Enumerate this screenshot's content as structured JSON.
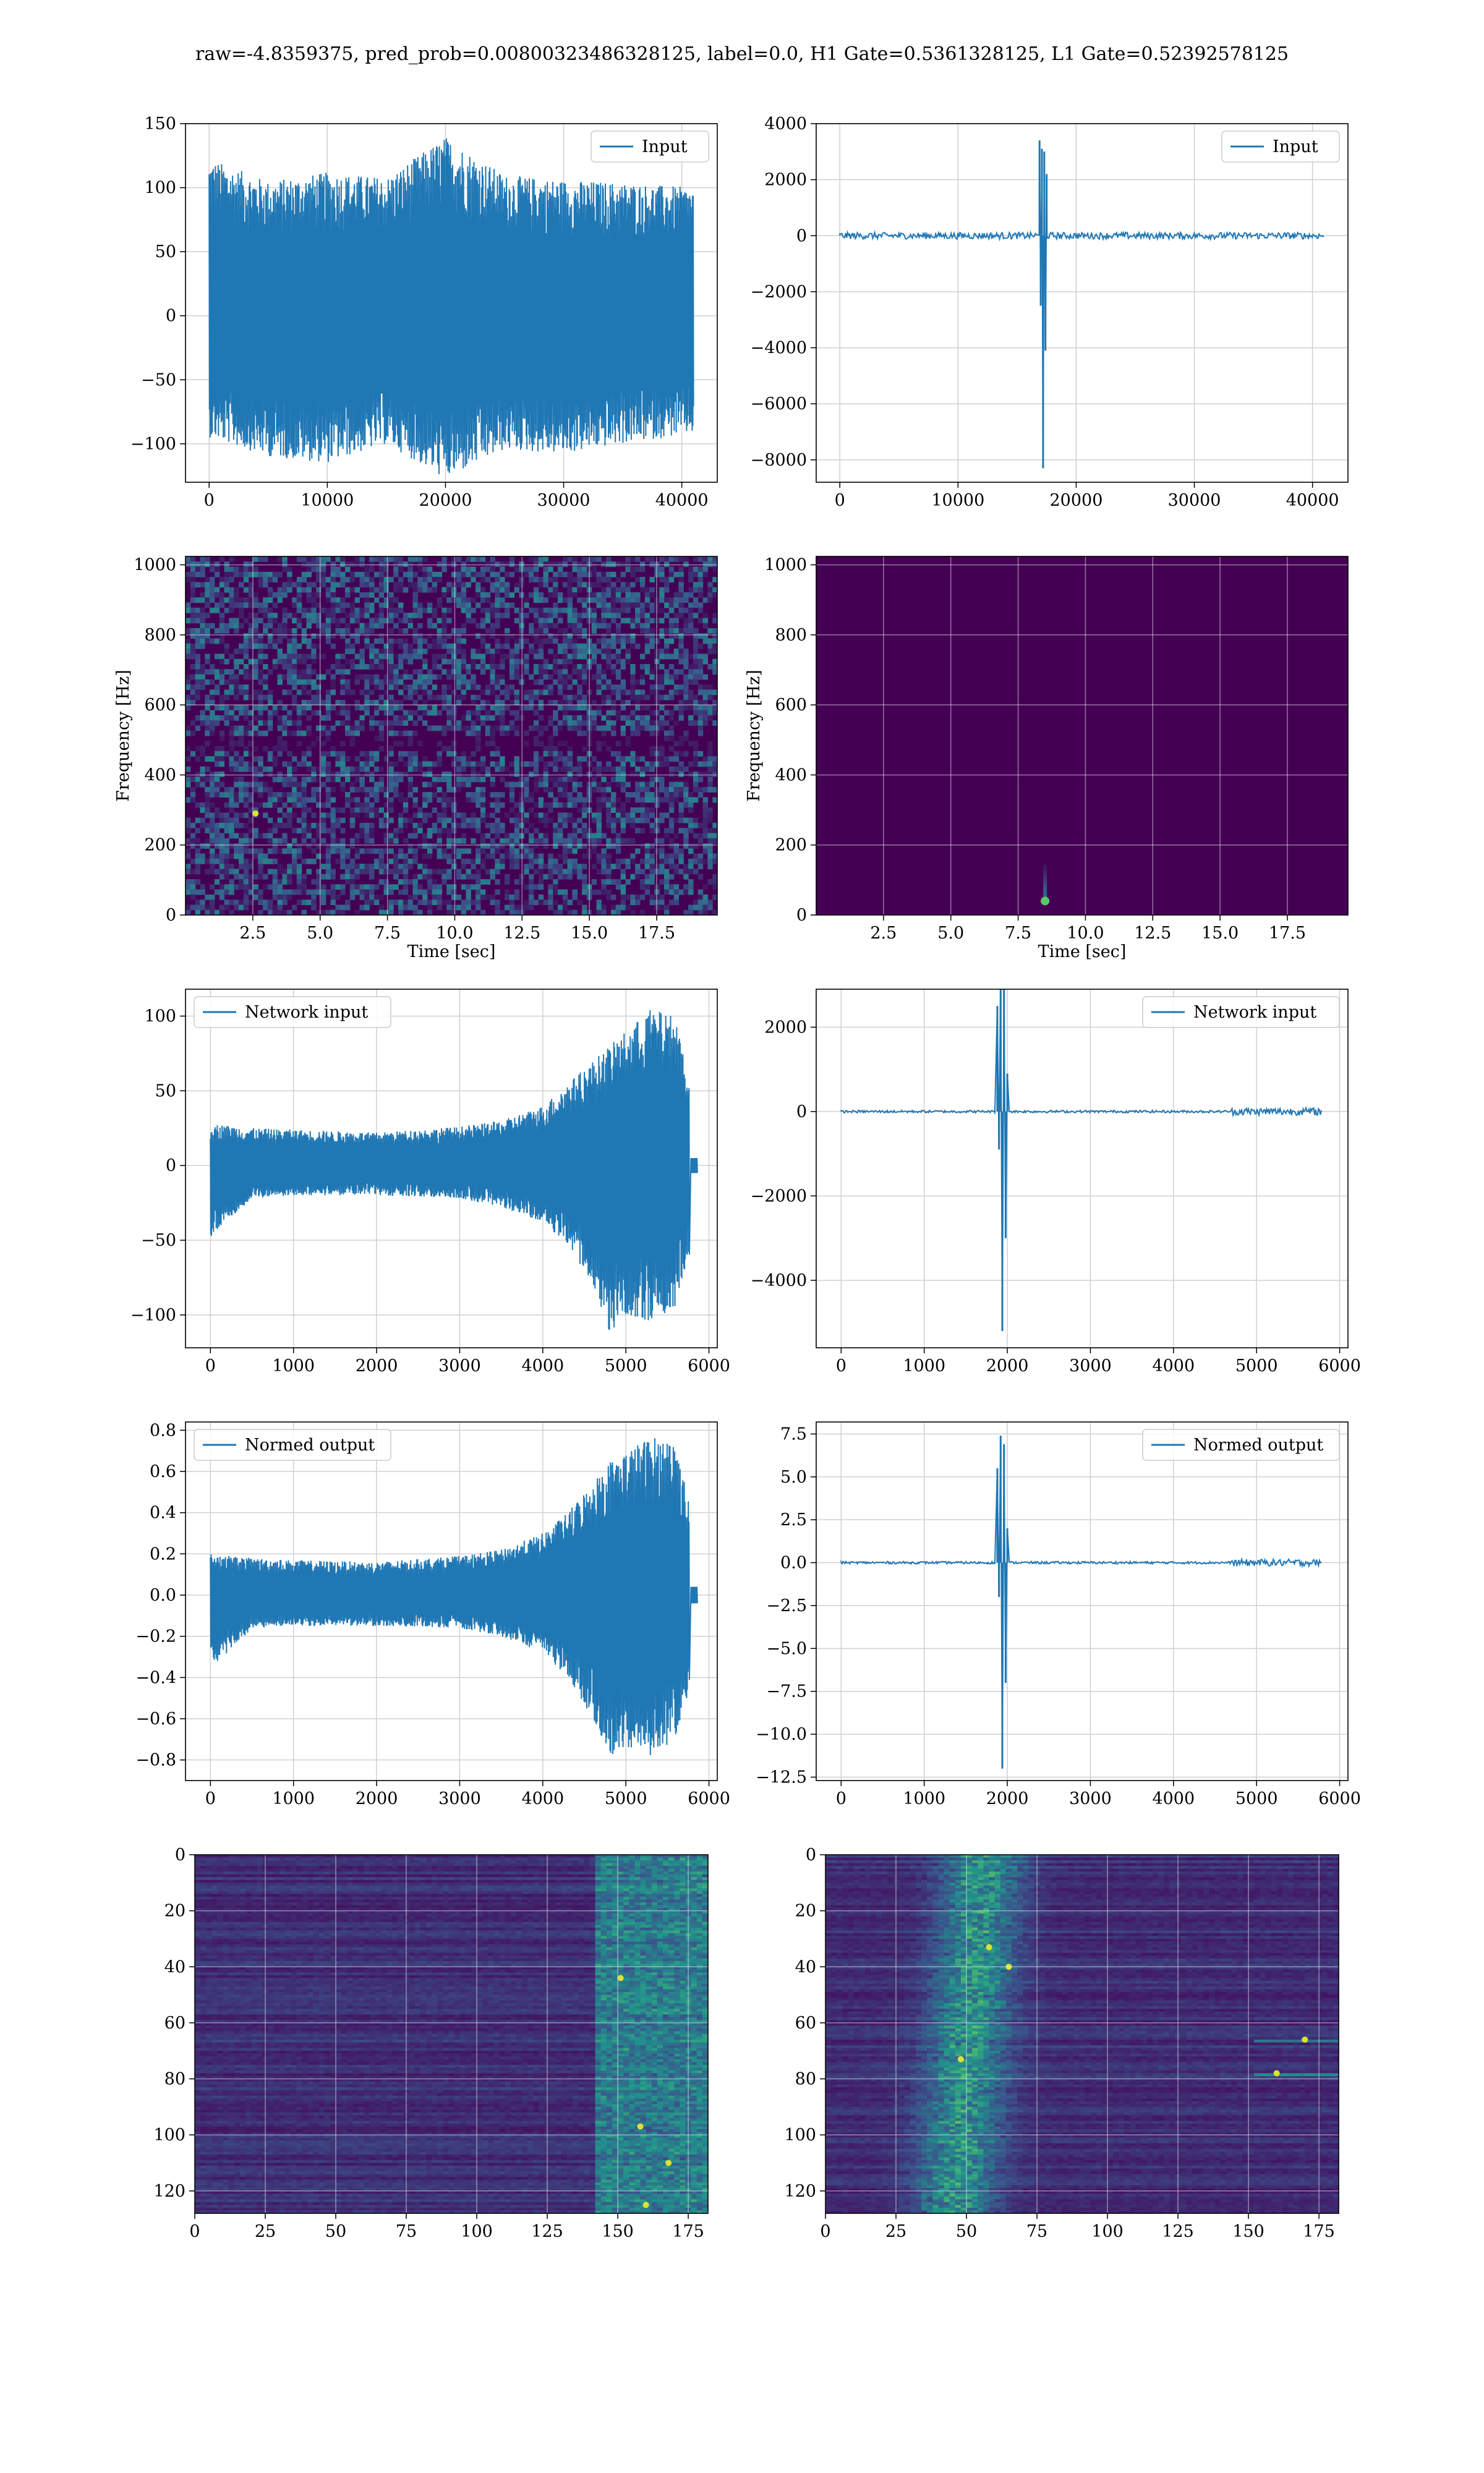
{
  "title": "raw=-4.8359375, pred_prob=0.00800323486328125, label=0.0, H1 Gate=0.5361328125, L1 Gate=0.52392578125",
  "colors": {
    "line": "#1f77b4",
    "grid": "#d0d0d0",
    "viridis_dark": "#440154",
    "viridis_mid": "#21918c",
    "viridis_bright": "#fde725"
  },
  "chart_data": [
    {
      "id": "h1-input",
      "type": "line",
      "legend_label": "Input",
      "legend_position": "upper right",
      "grid": true,
      "xlim": [
        -2000,
        43000
      ],
      "ylim": [
        -130,
        150
      ],
      "xticks": [
        0,
        10000,
        20000,
        30000,
        40000
      ],
      "yticks": [
        -100,
        -50,
        0,
        50,
        100,
        150
      ],
      "envelope": {
        "x": [
          0,
          5000,
          10000,
          15000,
          20000,
          25000,
          30000,
          35000,
          40960
        ],
        "upper": [
          123,
          105,
          112,
          108,
          140,
          110,
          106,
          104,
          100
        ],
        "lower": [
          -95,
          -110,
          -115,
          -100,
          -128,
          -105,
          -108,
          -100,
          -92
        ]
      }
    },
    {
      "id": "l1-input",
      "type": "line",
      "legend_label": "Input",
      "legend_position": "upper right",
      "grid": true,
      "xlim": [
        -2000,
        43000
      ],
      "ylim": [
        -8800,
        4000
      ],
      "xticks": [
        0,
        10000,
        20000,
        30000,
        40000
      ],
      "yticks": [
        -8000,
        -6000,
        -4000,
        -2000,
        0,
        2000,
        4000
      ],
      "spikes": [
        [
          16900,
          3400
        ],
        [
          17000,
          -2500
        ],
        [
          17100,
          3100
        ],
        [
          17200,
          -8300
        ],
        [
          17300,
          3000
        ],
        [
          17400,
          -4100
        ],
        [
          17500,
          2200
        ]
      ],
      "baseline_noise": 120,
      "x_end": 40960
    },
    {
      "id": "h1-spectrogram",
      "type": "heatmap",
      "grid": true,
      "xlabel": "Time [sec]",
      "ylabel": "Frequency [Hz]",
      "xlim": [
        0,
        19.75
      ],
      "ylim": [
        0,
        1024
      ],
      "xticks": [
        2.5,
        5.0,
        7.5,
        10.0,
        12.5,
        15.0,
        17.5
      ],
      "yticks": [
        0,
        200,
        400,
        600,
        800,
        1000
      ],
      "pattern": "noise",
      "hot_spots": [
        [
          2.6,
          290
        ]
      ]
    },
    {
      "id": "l1-spectrogram",
      "type": "heatmap",
      "grid": true,
      "xlabel": "Time [sec]",
      "ylabel": "Frequency [Hz]",
      "xlim": [
        0,
        19.75
      ],
      "ylim": [
        0,
        1024
      ],
      "xticks": [
        2.5,
        5.0,
        7.5,
        10.0,
        12.5,
        15.0,
        17.5
      ],
      "yticks": [
        0,
        200,
        400,
        600,
        800,
        1000
      ],
      "pattern": "burst",
      "hot_spots": [
        [
          8.5,
          40
        ]
      ]
    },
    {
      "id": "h1-network-input",
      "type": "line",
      "legend_label": "Network input",
      "legend_position": "upper left",
      "grid": true,
      "xlim": [
        -300,
        6100
      ],
      "ylim": [
        -122,
        118
      ],
      "xticks": [
        0,
        1000,
        2000,
        3000,
        4000,
        5000,
        6000
      ],
      "yticks": [
        -100,
        -50,
        0,
        50,
        100
      ],
      "envelope": {
        "x": [
          0,
          500,
          1000,
          2000,
          3000,
          3500,
          4000,
          4300,
          4600,
          4800,
          5000,
          5300,
          5600,
          5760
        ],
        "upper": [
          28,
          25,
          24,
          22,
          26,
          30,
          40,
          55,
          70,
          80,
          90,
          105,
          100,
          60
        ],
        "lower": [
          -48,
          -22,
          -20,
          -20,
          -22,
          -28,
          -38,
          -55,
          -80,
          -112,
          -100,
          -105,
          -95,
          -60
        ]
      },
      "tail": {
        "x": [
          5780,
          5860
        ],
        "amp": 5
      }
    },
    {
      "id": "l1-network-input",
      "type": "line",
      "legend_label": "Network input",
      "legend_position": "upper right",
      "grid": true,
      "xlim": [
        -300,
        6100
      ],
      "ylim": [
        -5600,
        2900
      ],
      "xticks": [
        0,
        1000,
        2000,
        3000,
        4000,
        5000,
        6000
      ],
      "yticks": [
        -4000,
        -2000,
        0,
        2000
      ],
      "spikes": [
        [
          1880,
          2500
        ],
        [
          1900,
          -900
        ],
        [
          1920,
          3300
        ],
        [
          1940,
          -5200
        ],
        [
          1960,
          3000
        ],
        [
          1980,
          -3000
        ],
        [
          2000,
          900
        ]
      ],
      "baseline_noise": 30,
      "x_end": 5780,
      "late_noise": {
        "x": [
          4700,
          5780
        ],
        "amp": 90
      }
    },
    {
      "id": "h1-normed-output",
      "type": "line",
      "legend_label": "Normed output",
      "legend_position": "upper left",
      "grid": true,
      "xlim": [
        -300,
        6100
      ],
      "ylim": [
        -0.9,
        0.84
      ],
      "xticks": [
        0,
        1000,
        2000,
        3000,
        4000,
        5000,
        6000
      ],
      "yticks": [
        -0.8,
        -0.6,
        -0.4,
        -0.2,
        0.0,
        0.2,
        0.4,
        0.6,
        0.8
      ],
      "envelope": {
        "x": [
          0,
          500,
          1000,
          2000,
          3000,
          3500,
          4000,
          4300,
          4600,
          4800,
          5000,
          5300,
          5600,
          5760
        ],
        "upper": [
          0.2,
          0.18,
          0.17,
          0.16,
          0.19,
          0.22,
          0.3,
          0.4,
          0.55,
          0.65,
          0.7,
          0.77,
          0.75,
          0.45
        ],
        "lower": [
          -0.36,
          -0.16,
          -0.15,
          -0.15,
          -0.16,
          -0.2,
          -0.28,
          -0.4,
          -0.6,
          -0.8,
          -0.74,
          -0.78,
          -0.7,
          -0.45
        ]
      },
      "tail": {
        "x": [
          5780,
          5860
        ],
        "amp": 0.04
      }
    },
    {
      "id": "l1-normed-output",
      "type": "line",
      "legend_label": "Normed output",
      "legend_position": "upper right",
      "grid": true,
      "xlim": [
        -300,
        6100
      ],
      "ylim": [
        -12.7,
        8.2
      ],
      "xticks": [
        0,
        1000,
        2000,
        3000,
        4000,
        5000,
        6000
      ],
      "yticks": [
        -12.5,
        -10.0,
        -7.5,
        -5.0,
        -2.5,
        0.0,
        2.5,
        5.0,
        7.5
      ],
      "spikes": [
        [
          1880,
          5.5
        ],
        [
          1900,
          -2.0
        ],
        [
          1920,
          7.4
        ],
        [
          1940,
          -12.0
        ],
        [
          1960,
          6.9
        ],
        [
          1980,
          -7.0
        ],
        [
          2000,
          2.0
        ]
      ],
      "baseline_noise": 0.07,
      "x_end": 5780,
      "late_noise": {
        "x": [
          4700,
          5780
        ],
        "amp": 0.2
      }
    },
    {
      "id": "h1-features",
      "type": "heatmap",
      "grid": true,
      "xlabel": "",
      "ylabel": "",
      "xlim": [
        0,
        182
      ],
      "ylim": [
        128,
        0
      ],
      "xticks": [
        0,
        25,
        50,
        75,
        100,
        125,
        150,
        175
      ],
      "yticks": [
        0,
        20,
        40,
        60,
        80,
        100,
        120
      ],
      "pattern": "striped-late",
      "hot_spots": [
        [
          158,
          97
        ],
        [
          160,
          125
        ],
        [
          151,
          44
        ],
        [
          168,
          110
        ]
      ]
    },
    {
      "id": "l1-features",
      "type": "heatmap",
      "grid": true,
      "xlabel": "",
      "ylabel": "",
      "xlim": [
        0,
        182
      ],
      "ylim": [
        128,
        0
      ],
      "xticks": [
        0,
        25,
        50,
        75,
        100,
        125,
        150,
        175
      ],
      "yticks": [
        0,
        20,
        40,
        60,
        80,
        100,
        120
      ],
      "pattern": "striped-early",
      "hot_spots": [
        [
          48,
          73
        ],
        [
          58,
          33
        ],
        [
          65,
          40
        ],
        [
          160,
          78
        ],
        [
          170,
          66
        ]
      ]
    }
  ]
}
